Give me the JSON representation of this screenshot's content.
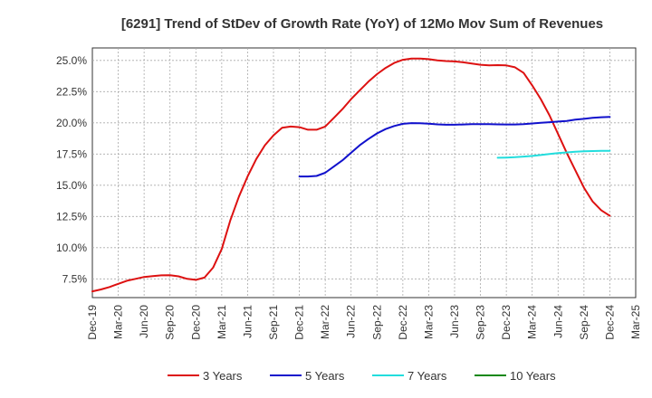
{
  "chart_data": {
    "type": "line",
    "title": "[6291]  Trend of StDev of Growth Rate (YoY) of 12Mo Mov Sum of Revenues",
    "xlabel": "",
    "ylabel": "",
    "y_tick_labels": [
      "7.5%",
      "10.0%",
      "12.5%",
      "15.0%",
      "17.5%",
      "20.0%",
      "22.5%",
      "25.0%"
    ],
    "y_ticks": [
      7.5,
      10.0,
      12.5,
      15.0,
      17.5,
      20.0,
      22.5,
      25.0
    ],
    "ylim": [
      6.0,
      26.0
    ],
    "x_tick_labels": [
      "Dec-19",
      "Mar-20",
      "Jun-20",
      "Sep-20",
      "Dec-20",
      "Mar-21",
      "Jun-21",
      "Sep-21",
      "Dec-21",
      "Mar-22",
      "Jun-22",
      "Sep-22",
      "Dec-22",
      "Mar-23",
      "Jun-23",
      "Sep-23",
      "Dec-23",
      "Mar-24",
      "Jun-24",
      "Sep-24",
      "Dec-24",
      "Mar-25"
    ],
    "x_range_months": [
      0,
      63
    ],
    "grid": true,
    "legend_position": "bottom",
    "series": [
      {
        "name": "3 Years",
        "color": "#dd1111",
        "x_months": [
          0,
          1,
          2,
          3,
          4,
          5,
          6,
          7,
          8,
          9,
          10,
          11,
          12,
          13,
          14,
          15,
          16,
          17,
          18,
          19,
          20,
          21,
          22,
          23,
          24,
          25,
          26,
          27,
          28,
          29,
          30,
          31,
          32,
          33,
          34,
          35,
          36,
          37,
          38,
          39,
          40,
          41,
          42,
          43,
          44,
          45,
          46,
          47,
          48,
          49,
          50,
          51,
          52,
          53,
          54,
          55,
          56,
          57,
          58,
          59,
          60
        ],
        "values": [
          6.5,
          6.65,
          6.85,
          7.1,
          7.35,
          7.5,
          7.65,
          7.72,
          7.78,
          7.8,
          7.7,
          7.5,
          7.42,
          7.6,
          8.4,
          9.9,
          12.2,
          14.1,
          15.7,
          17.1,
          18.2,
          19.0,
          19.6,
          19.7,
          19.65,
          19.45,
          19.45,
          19.7,
          20.4,
          21.1,
          21.9,
          22.6,
          23.3,
          23.9,
          24.4,
          24.8,
          25.05,
          25.15,
          25.15,
          25.1,
          25.0,
          24.95,
          24.92,
          24.85,
          24.75,
          24.65,
          24.6,
          24.62,
          24.6,
          24.45,
          24.0,
          23.0,
          21.9,
          20.6,
          19.1,
          17.6,
          16.2,
          14.8,
          13.7,
          13.0,
          12.55
        ]
      },
      {
        "name": "5 Years",
        "color": "#1111cc",
        "x_months": [
          24,
          25,
          26,
          27,
          28,
          29,
          30,
          31,
          32,
          33,
          34,
          35,
          36,
          37,
          38,
          39,
          40,
          41,
          42,
          43,
          44,
          45,
          46,
          47,
          48,
          49,
          50,
          51,
          52,
          53,
          54,
          55,
          56,
          57,
          58,
          59,
          60
        ],
        "values": [
          15.7,
          15.7,
          15.75,
          16.0,
          16.5,
          17.0,
          17.6,
          18.2,
          18.7,
          19.15,
          19.5,
          19.75,
          19.92,
          19.98,
          19.97,
          19.93,
          19.88,
          19.85,
          19.85,
          19.87,
          19.9,
          19.9,
          19.9,
          19.88,
          19.87,
          19.87,
          19.9,
          19.95,
          20.0,
          20.05,
          20.1,
          20.15,
          20.25,
          20.32,
          20.4,
          20.45,
          20.48
        ]
      },
      {
        "name": "7 Years",
        "color": "#22dddd",
        "x_months": [
          47,
          48,
          49,
          50,
          51,
          52,
          53,
          54,
          55,
          56,
          57,
          58,
          59,
          60
        ],
        "values": [
          17.2,
          17.22,
          17.25,
          17.3,
          17.35,
          17.42,
          17.5,
          17.58,
          17.63,
          17.68,
          17.72,
          17.74,
          17.75,
          17.76
        ]
      },
      {
        "name": "10 Years",
        "color": "#118811",
        "x_months": [],
        "values": []
      }
    ]
  }
}
